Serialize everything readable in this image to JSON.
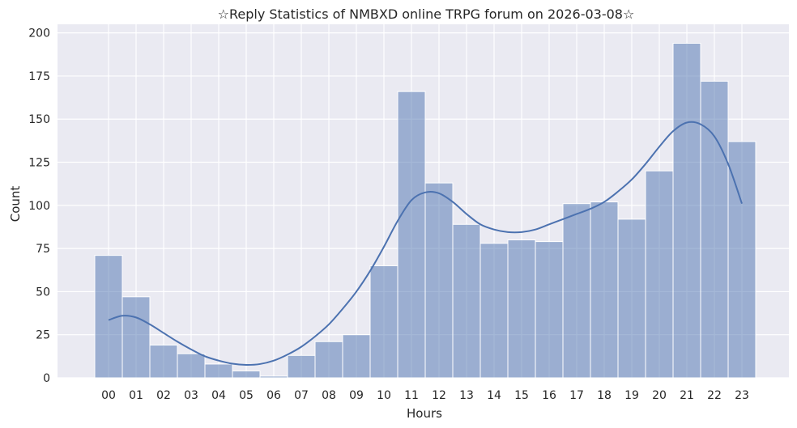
{
  "chart_data": {
    "type": "bar",
    "title": "☆Reply Statistics of NMBXD online TRPG forum on 2026-03-08☆",
    "xlabel": "Hours",
    "ylabel": "Count",
    "ylim": [
      0,
      205
    ],
    "yticks": [
      0,
      25,
      50,
      75,
      100,
      125,
      150,
      175,
      200
    ],
    "grid": true,
    "categories": [
      "00",
      "01",
      "02",
      "03",
      "04",
      "05",
      "06",
      "07",
      "08",
      "09",
      "10",
      "11",
      "12",
      "13",
      "14",
      "15",
      "16",
      "17",
      "18",
      "19",
      "20",
      "21",
      "22",
      "23"
    ],
    "values": [
      71,
      47,
      19,
      14,
      8,
      4,
      1,
      13,
      21,
      25,
      65,
      166,
      113,
      89,
      78,
      80,
      79,
      101,
      102,
      92,
      120,
      194,
      172,
      137
    ],
    "kde": {
      "x": [
        0,
        0.5,
        1,
        1.5,
        2,
        2.5,
        3,
        3.5,
        4,
        4.5,
        5,
        5.5,
        6,
        6.5,
        7,
        7.5,
        8,
        8.5,
        9,
        9.5,
        10,
        10.5,
        11,
        11.5,
        12,
        12.5,
        13,
        13.5,
        14,
        14.5,
        15,
        15.5,
        16,
        16.5,
        17,
        17.5,
        18,
        18.5,
        19,
        19.5,
        20,
        20.5,
        21,
        21.5,
        22,
        22.5,
        23
      ],
      "y": [
        33.5,
        36,
        35,
        31,
        26,
        21,
        16.5,
        12.5,
        10,
        8.2,
        7.5,
        8,
        10,
        13.5,
        18,
        24,
        31,
        40,
        50,
        62,
        76,
        91,
        103,
        107.5,
        107,
        102,
        95,
        89,
        86,
        84.5,
        84.5,
        86,
        89,
        92,
        95,
        98,
        102,
        108,
        115,
        124,
        134,
        143,
        148,
        147,
        140,
        124,
        101
      ]
    },
    "colors": {
      "bar": "#4c72b0",
      "line": "#4c72b0",
      "background": "#eaeaf2",
      "grid": "#ffffff"
    }
  }
}
